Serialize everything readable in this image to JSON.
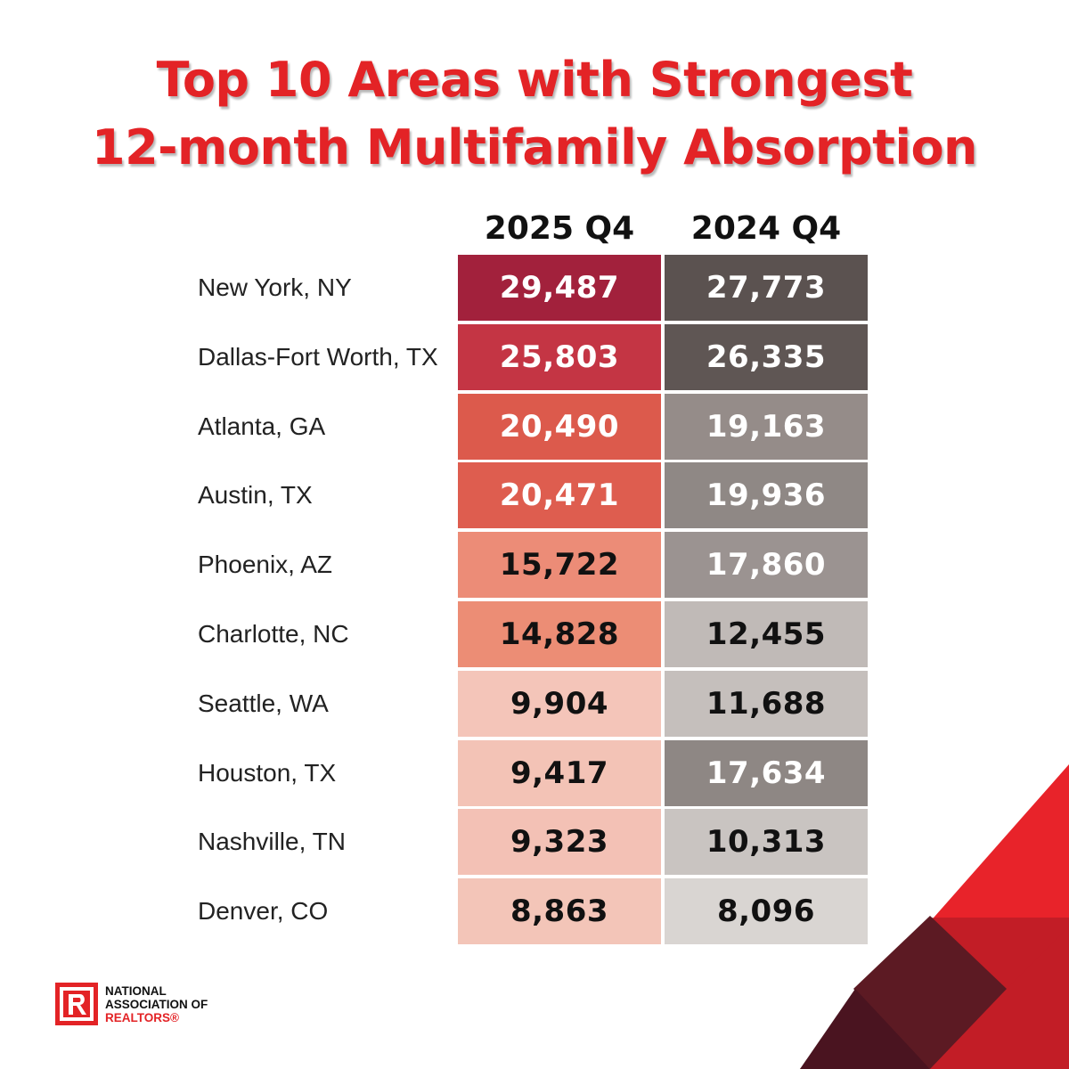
{
  "title_line1": "Top 10 Areas with Strongest",
  "title_line2": "12-month Multifamily Absorption",
  "chart_data": {
    "type": "table",
    "columns": [
      "2025 Q4",
      "2024 Q4"
    ],
    "rows": [
      {
        "area": "New York, NY",
        "v2025": "29,487",
        "v2024": "27,773"
      },
      {
        "area": "Dallas-Fort Worth, TX",
        "v2025": "25,803",
        "v2024": "26,335"
      },
      {
        "area": "Atlanta, GA",
        "v2025": "20,490",
        "v2024": "19,163"
      },
      {
        "area": "Austin, TX",
        "v2025": "20,471",
        "v2024": "19,936"
      },
      {
        "area": "Phoenix, AZ",
        "v2025": "15,722",
        "v2024": "17,860"
      },
      {
        "area": "Charlotte, NC",
        "v2025": "14,828",
        "v2024": "12,455"
      },
      {
        "area": "Seattle, WA",
        "v2025": "9,904",
        "v2024": "11,688"
      },
      {
        "area": "Houston, TX",
        "v2025": "9,417",
        "v2024": "17,634"
      },
      {
        "area": "Nashville, TN",
        "v2025": "9,323",
        "v2024": "10,313"
      },
      {
        "area": "Denver, CO",
        "v2025": "8,863",
        "v2024": "8,096"
      }
    ]
  },
  "colors": {
    "title": "#e32326",
    "col2025": [
      "#a2213c",
      "#c43544",
      "#dc5a4c",
      "#de5d4f",
      "#ec8c77",
      "#ec8d75",
      "#f4c5b9",
      "#f3c3b6",
      "#f3c1b5",
      "#f3c5b8"
    ],
    "col2024": [
      "#5b5250",
      "#5f5654",
      "#958c89",
      "#8f8885",
      "#9b9391",
      "#c0bab7",
      "#c5bfbc",
      "#8e8784",
      "#c9c4c1",
      "#d9d5d2"
    ],
    "text2025": [
      "#ffffff",
      "#ffffff",
      "#ffffff",
      "#ffffff",
      "#111111",
      "#111111",
      "#111111",
      "#111111",
      "#111111",
      "#111111"
    ],
    "text2024": [
      "#ffffff",
      "#ffffff",
      "#ffffff",
      "#ffffff",
      "#ffffff",
      "#111111",
      "#111111",
      "#ffffff",
      "#111111",
      "#111111"
    ]
  },
  "logo": {
    "line1": "NATIONAL",
    "line2": "ASSOCIATION OF",
    "line3": "REALTORS®",
    "icon": "realtor-r-icon"
  }
}
